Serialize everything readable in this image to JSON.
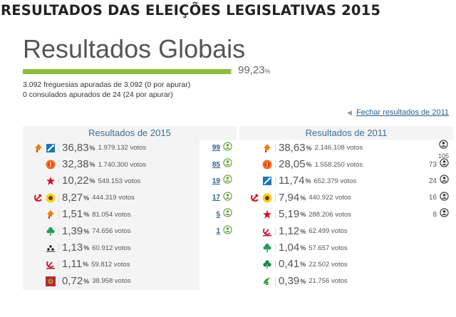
{
  "header": {
    "title": "RESULTADOS DAS ELEIÇÕES LEGISLATIVAS 2015"
  },
  "global": {
    "title": "Resultados Globais",
    "progress": {
      "value": "99,23",
      "sign": "%",
      "fraction": 0.9923,
      "fill_color": "#8cbe3c"
    },
    "freguesias": "3.092 freguesias apuradas de 3.092 (0 por apurar)",
    "consulados": "0 consulados apurados de 24 (24 por apurar)"
  },
  "close_link": {
    "label": "Fechar resultados de 2011"
  },
  "results_2015": {
    "title": "Resultados de 2015",
    "rows": [
      {
        "icons": [
          "psd-arrow-icon",
          "cds-square-icon"
        ],
        "pct": "36,83",
        "votes": "1.979.132 votos",
        "seats": "99"
      },
      {
        "icons": [
          "ps-fist-icon"
        ],
        "pct": "32,38",
        "votes": "1.740.300 votos",
        "seats": "85"
      },
      {
        "icons": [
          "be-star-icon"
        ],
        "pct": "10,22",
        "votes": "549.153 votos",
        "seats": "19"
      },
      {
        "icons": [
          "pcp-hammer-sickle-icon",
          "pev-sunflower-icon"
        ],
        "pct": "8,27",
        "votes": "444.319 votos",
        "seats": "17"
      },
      {
        "icons": [
          "psd-arrow-icon"
        ],
        "pct": "1,51",
        "votes": "81.054 votos",
        "seats": "5"
      },
      {
        "icons": [
          "pan-tree-icon"
        ],
        "pct": "1,39",
        "votes": "74.656 votos",
        "seats": "1"
      },
      {
        "icons": [
          "pdr-dots-icon"
        ],
        "pct": "1,13",
        "votes": "60.912 votos",
        "seats": ""
      },
      {
        "icons": [
          "pctp-hammer-sickle-icon"
        ],
        "pct": "1,11",
        "votes": "59.812 votos",
        "seats": ""
      },
      {
        "icons": [
          "livre-flower-icon"
        ],
        "pct": "0,72",
        "votes": "38.958 votos",
        "seats": ""
      }
    ]
  },
  "results_2011": {
    "title": "Resultados de 2011",
    "rows": [
      {
        "icons": [
          "psd-arrow-icon"
        ],
        "pct": "38,63",
        "votes": "2.146.108 votos",
        "seats": "105",
        "stacked": true
      },
      {
        "icons": [
          "ps-fist-icon"
        ],
        "pct": "28,05",
        "votes": "1.558.250 votos",
        "seats": "73"
      },
      {
        "icons": [
          "cds-square-icon"
        ],
        "pct": "11,74",
        "votes": "652.379 votos",
        "seats": "24"
      },
      {
        "icons": [
          "pcp-hammer-sickle-icon",
          "pev-sunflower-icon"
        ],
        "pct": "7,94",
        "votes": "440.922 votos",
        "seats": "16"
      },
      {
        "icons": [
          "be-star-icon"
        ],
        "pct": "5,19",
        "votes": "288.206 votos",
        "seats": "8"
      },
      {
        "icons": [
          "pctp-hammer-sickle-icon"
        ],
        "pct": "1,12",
        "votes": "62.499 votos",
        "seats": ""
      },
      {
        "icons": [
          "pan-tree-icon"
        ],
        "pct": "1,04",
        "votes": "57.657 votos",
        "seats": ""
      },
      {
        "icons": [
          "mpt-clover-icon"
        ],
        "pct": "0,41",
        "votes": "22.502 votos",
        "seats": ""
      },
      {
        "icons": [
          "pnr-flame-icon"
        ],
        "pct": "0,39",
        "votes": "21.756 votos",
        "seats": ""
      }
    ]
  },
  "labels": {
    "pct_sign": "%"
  }
}
